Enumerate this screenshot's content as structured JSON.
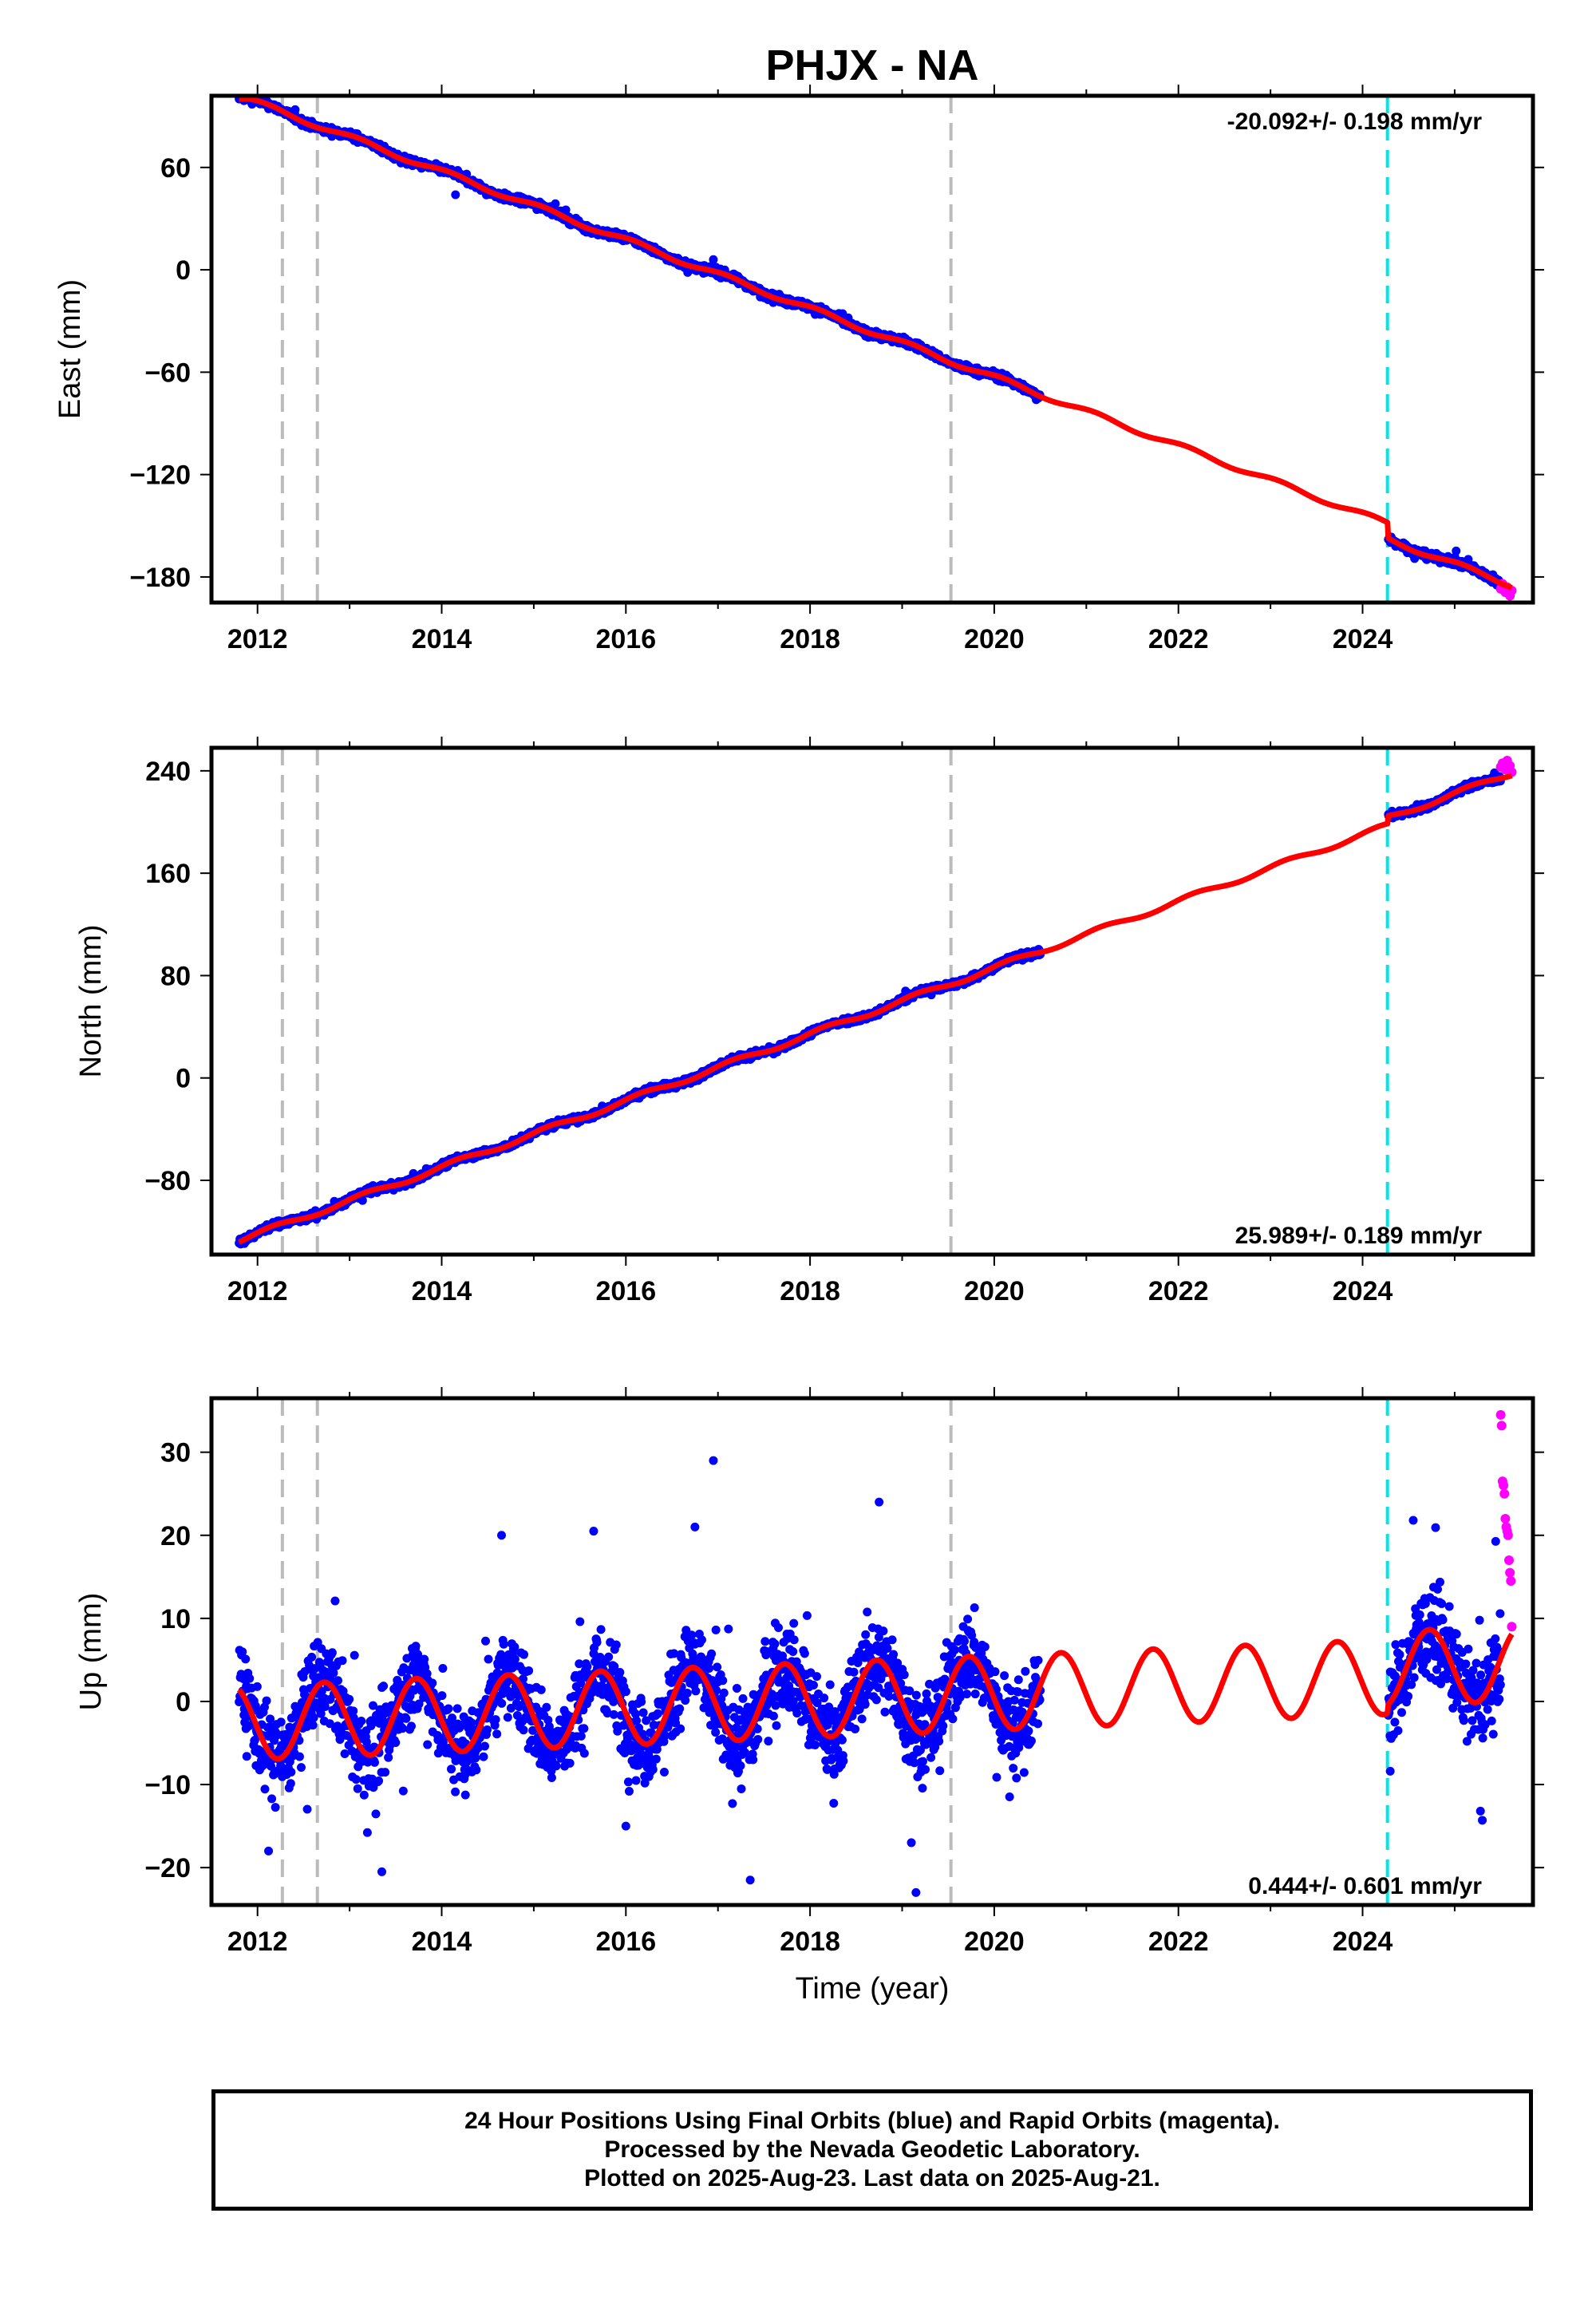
{
  "title": "PHJX - NA",
  "footer": {
    "line1": "24 Hour Positions Using Final Orbits (blue) and Rapid Orbits (magenta).",
    "line2": "Processed by the Nevada Geodetic Laboratory.",
    "line3": "Plotted on 2025-Aug-23. Last data on 2025-Aug-21."
  },
  "colors": {
    "final_orbits": "#0000ff",
    "rapid_orbits": "#ff00ff",
    "model_fit": "#ff0000",
    "equipment_change": "#bbbbbb",
    "earthquake_offset": "#00e5e5"
  },
  "chart_data": [
    {
      "type": "scatter",
      "component": "East",
      "ylabel": "East (mm)",
      "xlabel": "",
      "xlim": [
        2011.5,
        2025.85
      ],
      "ylim": [
        -195,
        102
      ],
      "xticks": [
        2012,
        2014,
        2016,
        2018,
        2020,
        2022,
        2024
      ],
      "yticks": [
        60,
        0,
        -60,
        -120,
        -180
      ],
      "rate": "-20.092+/- 0.198 mm/yr",
      "rate_position": "top-right",
      "equipment_changes": [
        2012.27,
        2012.65,
        2019.53
      ],
      "offset_events": [
        2024.27
      ],
      "model": {
        "a": 101.8,
        "b": -20.092,
        "t0": 2011.8,
        "amp": 1.5,
        "phase": 1.0,
        "offsets": [
          {
            "t": 2024.27,
            "d": -9
          }
        ]
      },
      "final_orbits": {
        "segments": [
          {
            "start": 2011.8,
            "end": 2020.5
          },
          {
            "start": 2024.28,
            "end": 2025.5
          }
        ],
        "noise_mm": 1.5,
        "outliers": [
          [
            2016.95,
            6
          ],
          [
            2014.15,
            44
          ]
        ]
      },
      "rapid_orbits": [
        [
          2025.5,
          -187
        ],
        [
          2025.52,
          -184
        ],
        [
          2025.55,
          -189
        ],
        [
          2025.57,
          -186
        ],
        [
          2025.6,
          -191
        ],
        [
          2025.62,
          -188
        ]
      ]
    },
    {
      "type": "scatter",
      "component": "North",
      "ylabel": "North (mm)",
      "xlabel": "",
      "xlim": [
        2011.5,
        2025.85
      ],
      "ylim": [
        -138,
        258
      ],
      "xticks": [
        2012,
        2014,
        2016,
        2018,
        2020,
        2022,
        2024
      ],
      "yticks": [
        240,
        160,
        80,
        0,
        -80
      ],
      "rate": "25.989+/- 0.189 mm/yr",
      "rate_position": "bottom-right",
      "equipment_changes": [
        2012.27,
        2012.65,
        2019.53
      ],
      "offset_events": [
        2024.27
      ],
      "model": {
        "a": -127,
        "b": 25.989,
        "t0": 2011.8,
        "amp": 2.0,
        "phase": 0.5,
        "offsets": [
          {
            "t": 2024.27,
            "d": 6
          }
        ]
      },
      "final_orbits": {
        "segments": [
          {
            "start": 2011.8,
            "end": 2020.5
          },
          {
            "start": 2024.28,
            "end": 2025.5
          }
        ],
        "noise_mm": 1.8,
        "outliers": []
      },
      "rapid_orbits": [
        [
          2025.5,
          243
        ],
        [
          2025.52,
          246
        ],
        [
          2025.55,
          241
        ],
        [
          2025.57,
          248
        ],
        [
          2025.6,
          244
        ],
        [
          2025.62,
          239
        ]
      ]
    },
    {
      "type": "scatter",
      "component": "Up",
      "ylabel": "Up (mm)",
      "xlabel": "Time (year)",
      "xlim": [
        2011.5,
        2025.85
      ],
      "ylim": [
        -24.5,
        36.5
      ],
      "xticks": [
        2012,
        2014,
        2016,
        2018,
        2020,
        2022,
        2024
      ],
      "yticks": [
        30,
        20,
        10,
        0,
        -10,
        -20
      ],
      "rate": "0.444+/- 0.601 mm/yr",
      "rate_position": "bottom-right",
      "equipment_changes": [
        2012.27,
        2012.65,
        2019.53
      ],
      "offset_events": [
        2024.27
      ],
      "model": {
        "a": -2.6,
        "b": 0.444,
        "t0": 2011.8,
        "amp": 4.5,
        "phase": 3.3,
        "offsets": [
          {
            "t": 2024.27,
            "d": 1
          }
        ]
      },
      "final_orbits": {
        "segments": [
          {
            "start": 2011.8,
            "end": 2020.5
          },
          {
            "start": 2024.28,
            "end": 2025.5
          }
        ],
        "noise_mm": 3.5,
        "outliers": [
          [
            2016.95,
            29
          ],
          [
            2018.75,
            24
          ],
          [
            2012.12,
            -18
          ],
          [
            2013.35,
            -20.5
          ],
          [
            2017.35,
            -21.5
          ],
          [
            2019.15,
            -23
          ],
          [
            2019.1,
            -17
          ],
          [
            2016.0,
            -15
          ],
          [
            2014.65,
            20
          ],
          [
            2015.65,
            20.5
          ],
          [
            2016.75,
            21
          ],
          [
            2024.55,
            21.8
          ],
          [
            2025.3,
            -14.3
          ],
          [
            2025.28,
            -13.2
          ],
          [
            2024.3,
            -8.4
          ]
        ]
      },
      "rapid_orbits": [
        [
          2025.5,
          34.5
        ],
        [
          2025.51,
          33.2
        ],
        [
          2025.52,
          26.5
        ],
        [
          2025.53,
          26
        ],
        [
          2025.54,
          25
        ],
        [
          2025.55,
          22
        ],
        [
          2025.56,
          21
        ],
        [
          2025.57,
          20.5
        ],
        [
          2025.58,
          20
        ],
        [
          2025.59,
          17
        ],
        [
          2025.6,
          15.5
        ],
        [
          2025.61,
          14.5
        ],
        [
          2025.62,
          9
        ]
      ]
    }
  ]
}
